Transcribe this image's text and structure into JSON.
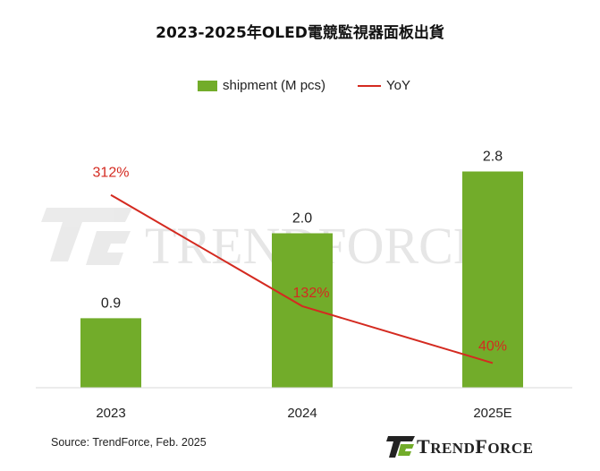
{
  "title": "2023-2025年OLED電競監視器面板出貨",
  "legend": {
    "bar_label": "shipment (M pcs)",
    "line_label": "YoY"
  },
  "source": "Source: TrendForce, Feb. 2025",
  "watermark": "TRENDFORCE",
  "brand": {
    "first": "T",
    "rest": "REND",
    "second": "F",
    "rest2": "ORCE"
  },
  "colors": {
    "bar": "#72ac2a",
    "line": "#d42a20",
    "bar_label": "#222222",
    "line_label": "#d42a20"
  },
  "chart_data": {
    "type": "bar",
    "categories": [
      "2023",
      "2024",
      "2025E"
    ],
    "series": [
      {
        "name": "shipment (M pcs)",
        "type": "bar",
        "values": [
          0.9,
          2.0,
          2.8
        ],
        "labels": [
          "0.9",
          "2.0",
          "2.8"
        ]
      },
      {
        "name": "YoY",
        "type": "line",
        "axis": "secondary",
        "values": [
          312,
          132,
          40
        ],
        "labels": [
          "312%",
          "132%",
          "40%"
        ]
      }
    ],
    "xlabel": "",
    "ylabel": "",
    "ylim": [
      0,
      3.2
    ],
    "y2lim": [
      0,
      400
    ],
    "grid": false,
    "legend": "top"
  }
}
